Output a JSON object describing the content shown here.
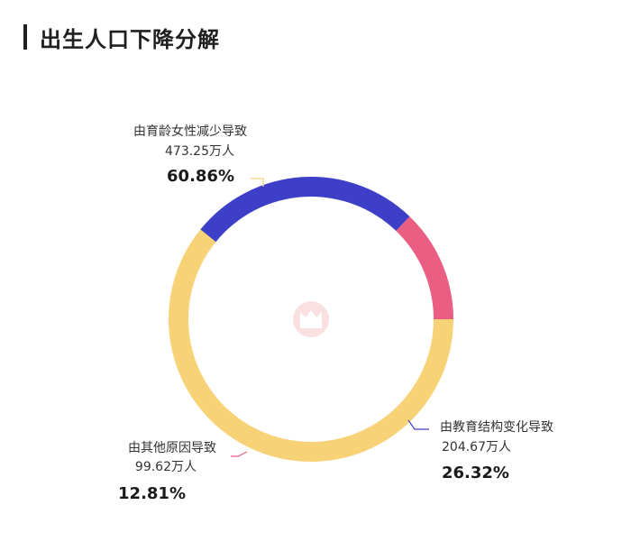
{
  "title": "出生人口下降分解",
  "chart_data": {
    "type": "pie",
    "style": "donut",
    "slices": [
      {
        "label": "由育龄女性减少导致",
        "value": 473.25,
        "unit": "万人",
        "value_text": "473.25万人",
        "percent": 60.86,
        "percent_text": "60.86%",
        "color": "#F7D277"
      },
      {
        "label": "由教育结构变化导致",
        "value": 204.67,
        "unit": "万人",
        "value_text": "204.67万人",
        "percent": 26.32,
        "percent_text": "26.32%",
        "color": "#3D3FC8"
      },
      {
        "label": "由其他原因导致",
        "value": 99.62,
        "unit": "万人",
        "value_text": "99.62万人",
        "percent": 12.81,
        "percent_text": "12.81%",
        "color": "#E95E82"
      }
    ]
  }
}
